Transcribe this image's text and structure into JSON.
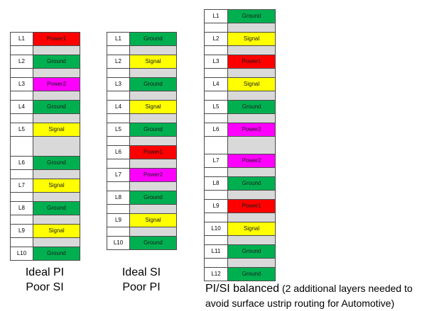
{
  "colors": {
    "Ground": "#00b050",
    "Signal": "#ffff00",
    "Power1": "#ff0000",
    "Power2": "#ff00ff",
    "gap": "#d9d9d9"
  },
  "stacks": [
    {
      "id": "ideal-pi",
      "caption_lines": [
        "Ideal PI",
        "Poor SI"
      ],
      "layers": [
        {
          "label": "L1",
          "type": "Power1"
        },
        {
          "label": "L2",
          "type": "Ground"
        },
        {
          "label": "L3",
          "type": "Power2"
        },
        {
          "label": "L4",
          "type": "Ground"
        },
        {
          "label": "L5",
          "type": "Signal"
        },
        {
          "label": "L6",
          "type": "Ground"
        },
        {
          "label": "L7",
          "type": "Signal"
        },
        {
          "label": "L8",
          "type": "Ground"
        },
        {
          "label": "L9",
          "type": "Signal"
        },
        {
          "label": "L10",
          "type": "Ground"
        }
      ]
    },
    {
      "id": "ideal-si",
      "caption_lines": [
        "Ideal SI",
        "Poor PI"
      ],
      "layers": [
        {
          "label": "L1",
          "type": "Ground"
        },
        {
          "label": "L2",
          "type": "Signal"
        },
        {
          "label": "L3",
          "type": "Ground"
        },
        {
          "label": "L4",
          "type": "Signal"
        },
        {
          "label": "L5",
          "type": "Ground"
        },
        {
          "label": "L6",
          "type": "Power1"
        },
        {
          "label": "L7",
          "type": "Power2"
        },
        {
          "label": "L8",
          "type": "Ground"
        },
        {
          "label": "L9",
          "type": "Signal"
        },
        {
          "label": "L10",
          "type": "Ground"
        }
      ]
    },
    {
      "id": "balanced",
      "caption_main": "PI/SI balanced",
      "caption_note_line1": " (2 additional layers needed to",
      "caption_note_line2": "avoid surface ustrip routing for Automotive)",
      "layers": [
        {
          "label": "L1",
          "type": "Ground"
        },
        {
          "label": "L2",
          "type": "Signal"
        },
        {
          "label": "L3",
          "type": "Power1"
        },
        {
          "label": "L4",
          "type": "Signal"
        },
        {
          "label": "L5",
          "type": "Ground"
        },
        {
          "label": "L6",
          "type": "Power2"
        },
        {
          "label": "L7",
          "type": "Power2"
        },
        {
          "label": "L8",
          "type": "Ground"
        },
        {
          "label": "L9",
          "type": "Power1"
        },
        {
          "label": "L10",
          "type": "Signal"
        },
        {
          "label": "L11",
          "type": "Ground"
        },
        {
          "label": "L12",
          "type": "Ground"
        }
      ]
    }
  ]
}
